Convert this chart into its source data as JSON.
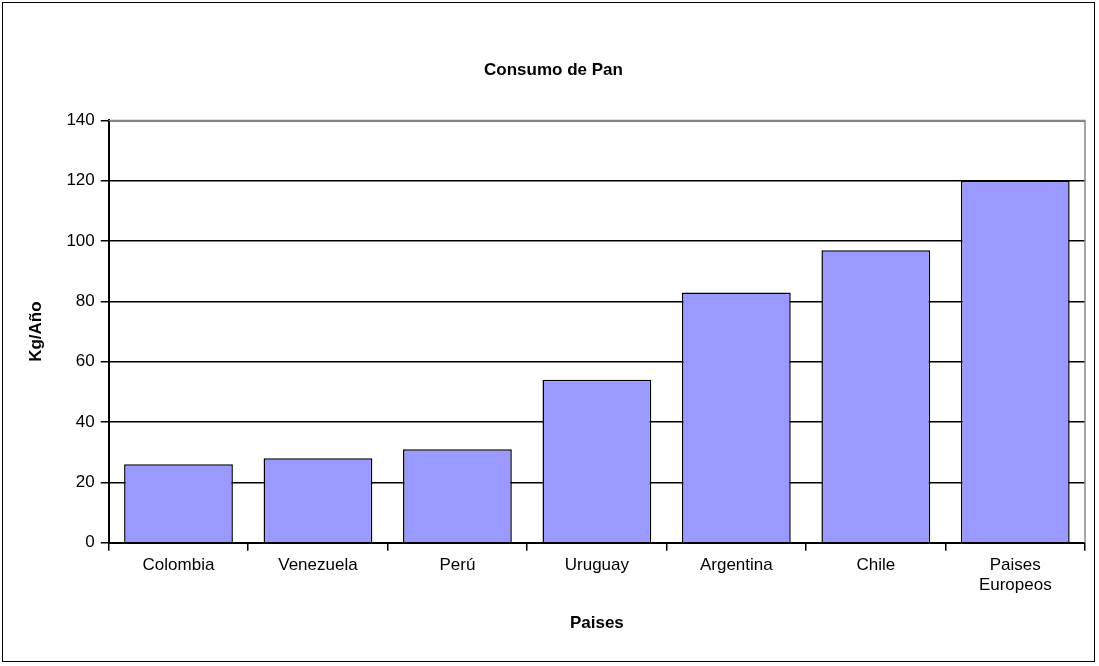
{
  "chart_data": {
    "type": "bar",
    "title": "Consumo de Pan",
    "xlabel": "Paises",
    "ylabel": "Kg/Año",
    "categories": [
      "Colombia",
      "Venezuela",
      "Perú",
      "Uruguay",
      "Argentina",
      "Chile",
      "Paises Europeos"
    ],
    "values": [
      26,
      28,
      31,
      54,
      83,
      97,
      120
    ],
    "color": "#9999ff",
    "ylim": [
      0,
      140
    ],
    "yticks": [
      0,
      20,
      40,
      60,
      80,
      100,
      120,
      140
    ],
    "grid": "y",
    "legend": false
  }
}
